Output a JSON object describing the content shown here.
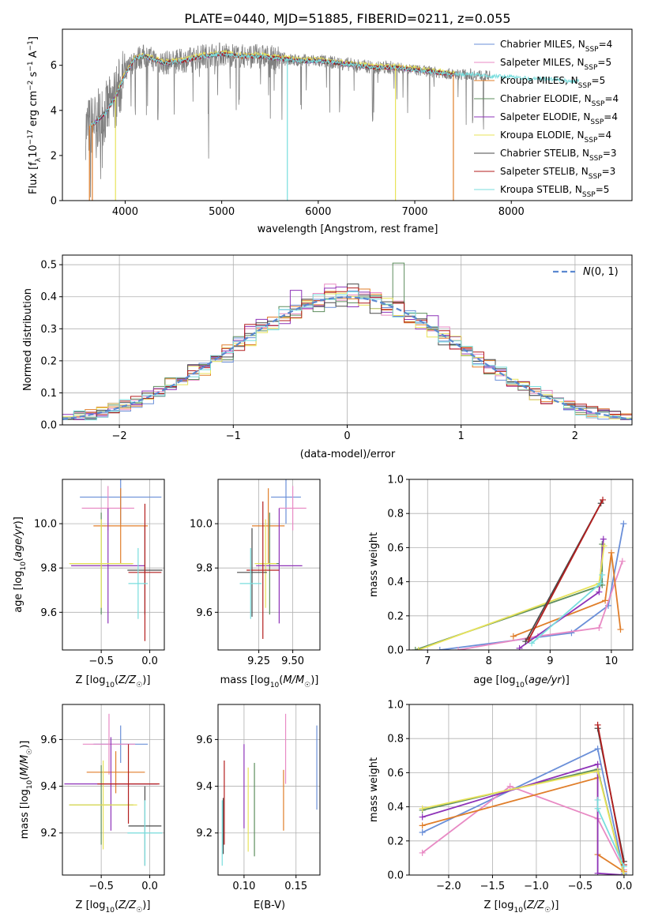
{
  "figure_title": "PLATE=0440, MJD=51885, FIBERID=0211, z=0.055",
  "colors": {
    "series": [
      "#6a8fd8",
      "#e88ac4",
      "#e07e2a",
      "#5e8e5e",
      "#8e33b8",
      "#e8e35a",
      "#4a4a4a",
      "#b31e1e",
      "#79dede"
    ],
    "data_spectrum": "#808080",
    "gaussian": "#5b88d0",
    "grid": "#b0b0b0"
  },
  "series_names": [
    {
      "name": "Chabrier MILES, N",
      "sub": "SSP",
      "tail": "=4"
    },
    {
      "name": "Salpeter MILES, N",
      "sub": "SSP",
      "tail": "=5"
    },
    {
      "name": "Kroupa MILES, N",
      "sub": "SSP",
      "tail": "=5"
    },
    {
      "name": "Chabrier ELODIE, N",
      "sub": "SSP",
      "tail": "=4"
    },
    {
      "name": "Salpeter ELODIE, N",
      "sub": "SSP",
      "tail": "=4"
    },
    {
      "name": "Kroupa ELODIE, N",
      "sub": "SSP",
      "tail": "=4"
    },
    {
      "name": "Chabrier STELIB, N",
      "sub": "SSP",
      "tail": "=3"
    },
    {
      "name": "Salpeter STELIB, N",
      "sub": "SSP",
      "tail": "=3"
    },
    {
      "name": "Kroupa STELIB, N",
      "sub": "SSP",
      "tail": "=5"
    }
  ],
  "chart_data": [
    {
      "id": "spectrum",
      "type": "line",
      "xlabel": "wavelength [Angstrom, rest frame]",
      "ylabel": "Flux [f_λ 10^-17 erg cm^-2 s^-1 A^-1]",
      "xlim": [
        3350,
        9250
      ],
      "ylim": [
        0,
        7.6
      ],
      "xticks": [
        4000,
        5000,
        6000,
        7000,
        8000
      ],
      "yticks": [
        0,
        2,
        4,
        6
      ],
      "legend_position": "top-right",
      "continuum_x": [
        3600,
        3700,
        3800,
        3900,
        4000,
        4100,
        4200,
        4400,
        4600,
        4800,
        5000,
        5200,
        5400,
        5600,
        5800,
        6000,
        6200,
        6400,
        6600,
        6800,
        7000,
        7200,
        7400,
        7600,
        7800,
        8000,
        8200,
        8400,
        8600,
        8800,
        9000
      ],
      "continuum_y": [
        3.2,
        3.5,
        3.9,
        4.6,
        5.6,
        6.3,
        6.4,
        6.1,
        6.2,
        6.4,
        6.5,
        6.4,
        6.4,
        6.3,
        6.2,
        6.2,
        6.1,
        6.0,
        5.9,
        5.9,
        5.8,
        5.7,
        5.6,
        5.6,
        5.5,
        5.5,
        5.4,
        5.4,
        5.3,
        5.3,
        5.2
      ],
      "model_spike_x": [
        3630,
        3660,
        3900,
        5680,
        6800,
        7400
      ],
      "data_dip_x": [
        3640,
        3700,
        4105,
        4340,
        4862,
        5180,
        6563,
        7600
      ]
    },
    {
      "id": "residuals",
      "type": "step",
      "xlabel": "(data-model)/error",
      "ylabel": "Normed distribution",
      "xlim": [
        -2.5,
        2.5
      ],
      "ylim": [
        0,
        0.53
      ],
      "xticks": [
        -2,
        -1,
        0,
        1,
        2
      ],
      "yticks": [
        0.0,
        0.1,
        0.2,
        0.3,
        0.4,
        0.5
      ],
      "gaussian_label": "N(0,1)",
      "bin_width": 0.1
    },
    {
      "id": "age_vs_Z",
      "type": "errorbar",
      "xlabel": "Z [log10(Z/Z☉)]",
      "ylabel": "age [log10(age/yr)]",
      "xlim": [
        -0.9,
        0.15
      ],
      "ylim": [
        9.43,
        10.2
      ],
      "xticks": [
        -0.5,
        0.0
      ],
      "yticks": [
        9.6,
        9.8,
        10.0
      ],
      "points": [
        {
          "x": -0.3,
          "xerr": 0.42,
          "y": 10.12,
          "yerr": 0.12
        },
        {
          "x": -0.43,
          "xerr": 0.27,
          "y": 10.07,
          "yerr": 0.1
        },
        {
          "x": -0.3,
          "xerr": 0.28,
          "y": 9.99,
          "yerr": 0.17
        },
        {
          "x": -0.5,
          "xerr": 0.32,
          "y": 9.82,
          "yerr": 0.23
        },
        {
          "x": -0.43,
          "xerr": 0.38,
          "y": 9.81,
          "yerr": 0.26
        },
        {
          "x": -0.5,
          "xerr": 0.33,
          "y": 9.82,
          "yerr": 0.2
        },
        {
          "x": -0.05,
          "xerr": 0.18,
          "y": 9.79,
          "yerr": 0.2
        },
        {
          "x": -0.05,
          "xerr": 0.17,
          "y": 9.78,
          "yerr": 0.31
        },
        {
          "x": -0.12,
          "xerr": 0.1,
          "y": 9.73,
          "yerr": 0.16
        }
      ]
    },
    {
      "id": "age_vs_mass",
      "type": "errorbar",
      "xlabel": "mass [log10(M/M☉)]",
      "ylabel": "",
      "xlim": [
        8.95,
        9.7
      ],
      "ylim": [
        9.43,
        10.2
      ],
      "xticks": [
        9.25,
        9.5
      ],
      "yticks": [
        9.6,
        9.8,
        10.0
      ],
      "points": [
        {
          "x": 9.45,
          "xerr": 0.11,
          "y": 10.12,
          "yerr": 0.12
        },
        {
          "x": 9.5,
          "xerr": 0.1,
          "y": 10.07,
          "yerr": 0.1
        },
        {
          "x": 9.32,
          "xerr": 0.12,
          "y": 9.99,
          "yerr": 0.17
        },
        {
          "x": 9.33,
          "xerr": 0.07,
          "y": 9.82,
          "yerr": 0.23
        },
        {
          "x": 9.4,
          "xerr": 0.17,
          "y": 9.81,
          "yerr": 0.26
        },
        {
          "x": 9.3,
          "xerr": 0.08,
          "y": 9.82,
          "yerr": 0.2
        },
        {
          "x": 9.2,
          "xerr": 0.11,
          "y": 9.78,
          "yerr": 0.2
        },
        {
          "x": 9.28,
          "xerr": 0.12,
          "y": 9.79,
          "yerr": 0.31
        },
        {
          "x": 9.19,
          "xerr": 0.08,
          "y": 9.73,
          "yerr": 0.16
        }
      ]
    },
    {
      "id": "weight_vs_age",
      "type": "line",
      "xlabel": "age [log10(age/yr)]",
      "ylabel": "mass weight",
      "xlim": [
        6.7,
        10.35
      ],
      "ylim": [
        0,
        1.0
      ],
      "xticks": [
        7,
        8,
        9,
        10
      ],
      "yticks": [
        0.0,
        0.2,
        0.4,
        0.6,
        0.8,
        1.0
      ],
      "series": [
        {
          "x": [
            7.2,
            9.35,
            9.95,
            10.2
          ],
          "y": [
            0.0,
            0.1,
            0.26,
            0.74
          ]
        },
        {
          "x": [
            7.5,
            8.8,
            9.8,
            10.18
          ],
          "y": [
            0.0,
            0.08,
            0.13,
            0.52
          ]
        },
        {
          "x": [
            8.4,
            9.9,
            10.0,
            10.15
          ],
          "y": [
            0.08,
            0.29,
            0.57,
            0.12
          ]
        },
        {
          "x": [
            6.8,
            9.85,
            9.85
          ],
          "y": [
            0.0,
            0.38,
            0.62
          ]
        },
        {
          "x": [
            8.5,
            9.8,
            9.87
          ],
          "y": [
            0.01,
            0.34,
            0.65
          ]
        },
        {
          "x": [
            6.85,
            9.8,
            9.88
          ],
          "y": [
            0.0,
            0.39,
            0.61
          ]
        },
        {
          "x": [
            8.6,
            9.83
          ],
          "y": [
            0.05,
            0.86
          ]
        },
        {
          "x": [
            8.65,
            9.86
          ],
          "y": [
            0.06,
            0.88
          ]
        },
        {
          "x": [
            8.7,
            9.82,
            9.85
          ],
          "y": [
            0.04,
            0.39,
            0.44
          ]
        }
      ]
    },
    {
      "id": "mass_vs_Z",
      "type": "errorbar",
      "xlabel": "Z [log10(Z/Z☉)]",
      "ylabel": "mass [log10(M/M☉)]",
      "xlim": [
        -0.9,
        0.15
      ],
      "ylim": [
        9.02,
        9.75
      ],
      "xticks": [
        -0.5,
        0.0
      ],
      "yticks": [
        9.2,
        9.4,
        9.6
      ],
      "points": [
        {
          "x": -0.3,
          "xerr": 0.28,
          "y": 9.58,
          "yerr": 0.08
        },
        {
          "x": -0.42,
          "xerr": 0.27,
          "y": 9.58,
          "yerr": 0.13
        },
        {
          "x": -0.35,
          "xerr": 0.3,
          "y": 9.46,
          "yerr": 0.09
        },
        {
          "x": -0.5,
          "xerr": 0.33,
          "y": 9.32,
          "yerr": 0.17
        },
        {
          "x": -0.4,
          "xerr": 0.48,
          "y": 9.41,
          "yerr": 0.2
        },
        {
          "x": -0.48,
          "xerr": 0.35,
          "y": 9.32,
          "yerr": 0.19
        },
        {
          "x": -0.05,
          "xerr": 0.17,
          "y": 9.23,
          "yerr": 0.17
        },
        {
          "x": -0.22,
          "xerr": 0.32,
          "y": 9.41,
          "yerr": 0.17
        },
        {
          "x": -0.05,
          "xerr": 0.18,
          "y": 9.2,
          "yerr": 0.14
        }
      ]
    },
    {
      "id": "mass_vs_EBV",
      "type": "errorbar",
      "xlabel": "E(B-V)",
      "ylabel": "",
      "xlim": [
        0.075,
        0.173
      ],
      "ylim": [
        9.02,
        9.75
      ],
      "xticks": [
        0.1,
        0.15
      ],
      "yticks": [
        9.2,
        9.4,
        9.6
      ],
      "points": [
        {
          "x": 0.17,
          "xerr": 0,
          "y": 9.48,
          "yerr": 0.18
        },
        {
          "x": 0.14,
          "xerr": 0,
          "y": 9.56,
          "yerr": 0.15
        },
        {
          "x": 0.138,
          "xerr": 0,
          "y": 9.34,
          "yerr": 0.13
        },
        {
          "x": 0.11,
          "xerr": 0,
          "y": 9.3,
          "yerr": 0.2
        },
        {
          "x": 0.1,
          "xerr": 0,
          "y": 9.4,
          "yerr": 0.18
        },
        {
          "x": 0.104,
          "xerr": 0,
          "y": 9.3,
          "yerr": 0.18
        },
        {
          "x": 0.08,
          "xerr": 0,
          "y": 9.23,
          "yerr": 0.12
        },
        {
          "x": 0.081,
          "xerr": 0,
          "y": 9.33,
          "yerr": 0.18
        },
        {
          "x": 0.079,
          "xerr": 0,
          "y": 9.2,
          "yerr": 0.14
        }
      ]
    },
    {
      "id": "weight_vs_Z",
      "type": "line",
      "xlabel": "Z [log10(Z/Z☉)]",
      "ylabel": "mass weight",
      "xlim": [
        -2.45,
        0.1
      ],
      "ylim": [
        0,
        1.0
      ],
      "xticks": [
        -2.0,
        -1.5,
        -1.0,
        -0.5,
        0.0
      ],
      "yticks": [
        0.0,
        0.2,
        0.4,
        0.6,
        0.8,
        1.0
      ],
      "series": [
        {
          "x": [
            -2.3,
            -0.3,
            0.0
          ],
          "y": [
            0.25,
            0.74,
            0.01
          ]
        },
        {
          "x": [
            -2.3,
            -1.3,
            -0.3,
            0.0
          ],
          "y": [
            0.13,
            0.52,
            0.33,
            0.03
          ]
        },
        {
          "x": [
            -2.3,
            -0.3,
            -0.3,
            0.0
          ],
          "y": [
            0.29,
            0.57,
            0.12,
            0.02
          ]
        },
        {
          "x": [
            -2.3,
            -0.3,
            0.0
          ],
          "y": [
            0.38,
            0.62,
            0.0
          ]
        },
        {
          "x": [
            -2.3,
            -0.3,
            -0.3,
            0.0
          ],
          "y": [
            0.34,
            0.65,
            0.01,
            0.0
          ]
        },
        {
          "x": [
            -2.3,
            -0.3,
            0.0
          ],
          "y": [
            0.39,
            0.61,
            0.0
          ]
        },
        {
          "x": [
            -0.3,
            0.0
          ],
          "y": [
            0.86,
            0.08
          ]
        },
        {
          "x": [
            -0.3,
            0.0
          ],
          "y": [
            0.88,
            0.06
          ]
        },
        {
          "x": [
            -0.3,
            -0.3,
            0.0
          ],
          "y": [
            0.44,
            0.39,
            0.05
          ]
        }
      ]
    }
  ]
}
